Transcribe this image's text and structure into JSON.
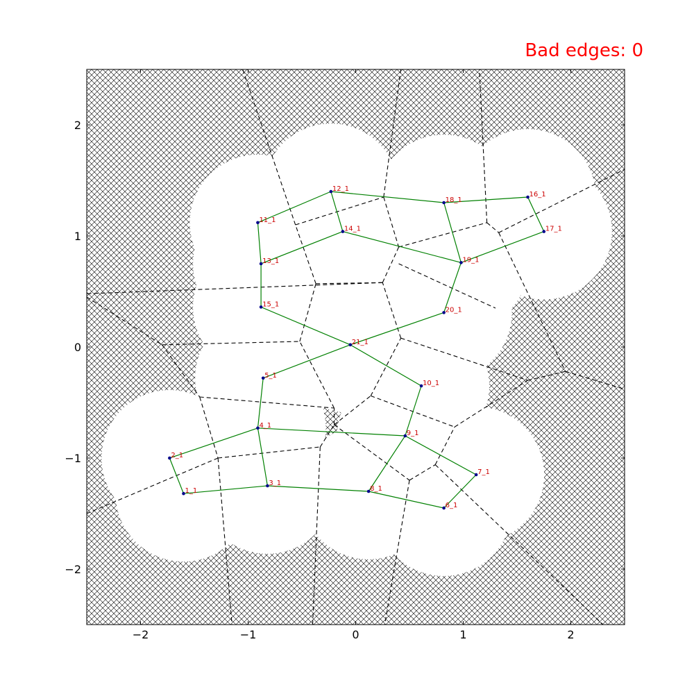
{
  "title": "Bad edges: 0",
  "chart_data": {
    "type": "scatter",
    "xlim": [
      -2.5,
      2.5
    ],
    "ylim": [
      -2.5,
      2.5
    ],
    "xticks": [
      -2,
      -1,
      0,
      1,
      2
    ],
    "yticks": [
      -2,
      -1,
      0,
      1,
      2
    ],
    "xtick_labels": [
      "−2",
      "−1",
      "0",
      "1",
      "2"
    ],
    "ytick_labels": [
      "−2",
      "−1",
      "0",
      "1",
      "2"
    ],
    "grid": false,
    "colors": {
      "edges": "#008000",
      "points": "#00008b",
      "labels": "#cc0000",
      "voronoi": "#000000",
      "hatch": "#000000"
    },
    "nodes": [
      {
        "label": "1_1",
        "x": -1.6,
        "y": -1.32
      },
      {
        "label": "2_1",
        "x": -1.73,
        "y": -1.0
      },
      {
        "label": "3_1",
        "x": -0.82,
        "y": -1.25
      },
      {
        "label": "4_1",
        "x": -0.91,
        "y": -0.73
      },
      {
        "label": "5_1",
        "x": -0.86,
        "y": -0.28
      },
      {
        "label": "6_1",
        "x": 0.82,
        "y": -1.45
      },
      {
        "label": "7_1",
        "x": 1.12,
        "y": -1.15
      },
      {
        "label": "8_1",
        "x": 0.12,
        "y": -1.3
      },
      {
        "label": "9_1",
        "x": 0.46,
        "y": -0.8
      },
      {
        "label": "10_1",
        "x": 0.61,
        "y": -0.35
      },
      {
        "label": "11_1",
        "x": -0.91,
        "y": 1.12
      },
      {
        "label": "12_1",
        "x": -0.23,
        "y": 1.4
      },
      {
        "label": "13_1",
        "x": -0.88,
        "y": 0.75
      },
      {
        "label": "14_1",
        "x": -0.12,
        "y": 1.04
      },
      {
        "label": "15_1",
        "x": -0.88,
        "y": 0.36
      },
      {
        "label": "16_1",
        "x": 1.6,
        "y": 1.35
      },
      {
        "label": "17_1",
        "x": 1.75,
        "y": 1.04
      },
      {
        "label": "18_1",
        "x": 0.82,
        "y": 1.3
      },
      {
        "label": "19_1",
        "x": 0.98,
        "y": 0.76
      },
      {
        "label": "20_1",
        "x": 0.82,
        "y": 0.31
      },
      {
        "label": "21_1",
        "x": -0.05,
        "y": 0.02
      }
    ],
    "edges": [
      [
        "1_1",
        "2_1"
      ],
      [
        "1_1",
        "3_1"
      ],
      [
        "2_1",
        "4_1"
      ],
      [
        "3_1",
        "4_1"
      ],
      [
        "3_1",
        "8_1"
      ],
      [
        "4_1",
        "5_1"
      ],
      [
        "4_1",
        "9_1"
      ],
      [
        "5_1",
        "21_1"
      ],
      [
        "6_1",
        "7_1"
      ],
      [
        "6_1",
        "8_1"
      ],
      [
        "7_1",
        "9_1"
      ],
      [
        "8_1",
        "9_1"
      ],
      [
        "9_1",
        "10_1"
      ],
      [
        "10_1",
        "21_1"
      ],
      [
        "11_1",
        "12_1"
      ],
      [
        "11_1",
        "13_1"
      ],
      [
        "12_1",
        "14_1"
      ],
      [
        "12_1",
        "18_1"
      ],
      [
        "13_1",
        "14_1"
      ],
      [
        "13_1",
        "15_1"
      ],
      [
        "14_1",
        "19_1"
      ],
      [
        "15_1",
        "21_1"
      ],
      [
        "16_1",
        "17_1"
      ],
      [
        "16_1",
        "18_1"
      ],
      [
        "17_1",
        "19_1"
      ],
      [
        "18_1",
        "19_1"
      ],
      [
        "19_1",
        "20_1"
      ],
      [
        "20_1",
        "21_1"
      ]
    ],
    "voronoi_vertices": [
      [
        -1.8,
        0.02
      ],
      [
        -0.52,
        0.05
      ],
      [
        -1.45,
        -0.45
      ],
      [
        -1.28,
        -1.0
      ],
      [
        -0.56,
        1.1
      ],
      [
        -0.37,
        0.57
      ],
      [
        0.26,
        1.35
      ],
      [
        0.4,
        0.9
      ],
      [
        0.25,
        0.58
      ],
      [
        0.42,
        0.08
      ],
      [
        0.14,
        -0.44
      ],
      [
        -0.2,
        -0.7
      ],
      [
        0.5,
        -1.2
      ],
      [
        0.74,
        -1.06
      ],
      [
        0.92,
        -0.72
      ],
      [
        1.22,
        1.12
      ],
      [
        1.33,
        1.03
      ],
      [
        1.6,
        -0.3
      ],
      [
        1.95,
        -0.22
      ],
      [
        -0.33,
        -0.9
      ]
    ],
    "voronoi_edges": [
      [
        [
          -2.5,
          0.45
        ],
        [
          -1.8,
          0.02
        ]
      ],
      [
        [
          -1.8,
          0.02
        ],
        [
          -0.52,
          0.05
        ]
      ],
      [
        [
          -1.8,
          0.02
        ],
        [
          -1.45,
          -0.45
        ]
      ],
      [
        [
          -1.45,
          -0.45
        ],
        [
          -1.28,
          -1.0
        ]
      ],
      [
        [
          -1.45,
          -0.45
        ],
        [
          -0.2,
          -0.55
        ]
      ],
      [
        [
          -1.28,
          -1.0
        ],
        [
          -2.5,
          -1.5
        ]
      ],
      [
        [
          -1.28,
          -1.0
        ],
        [
          -0.33,
          -0.9
        ]
      ],
      [
        [
          -1.28,
          -1.0
        ],
        [
          -1.15,
          -2.5
        ]
      ],
      [
        [
          -0.33,
          -0.9
        ],
        [
          -0.4,
          -2.5
        ]
      ],
      [
        [
          -0.33,
          -0.9
        ],
        [
          -0.2,
          -0.7
        ]
      ],
      [
        [
          -0.2,
          -0.7
        ],
        [
          -0.2,
          -0.55
        ]
      ],
      [
        [
          -0.2,
          -0.55
        ],
        [
          -0.52,
          0.05
        ]
      ],
      [
        [
          -0.2,
          -0.7
        ],
        [
          0.14,
          -0.44
        ]
      ],
      [
        [
          -0.2,
          -0.7
        ],
        [
          0.5,
          -1.2
        ]
      ],
      [
        [
          0.14,
          -0.44
        ],
        [
          0.42,
          0.08
        ]
      ],
      [
        [
          0.14,
          -0.44
        ],
        [
          0.92,
          -0.72
        ]
      ],
      [
        [
          0.42,
          0.08
        ],
        [
          0.25,
          0.58
        ]
      ],
      [
        [
          0.42,
          0.08
        ],
        [
          1.6,
          -0.3
        ]
      ],
      [
        [
          0.5,
          -1.2
        ],
        [
          0.74,
          -1.06
        ]
      ],
      [
        [
          0.74,
          -1.06
        ],
        [
          0.92,
          -0.72
        ]
      ],
      [
        [
          0.92,
          -0.72
        ],
        [
          1.6,
          -0.3
        ]
      ],
      [
        [
          0.5,
          -1.2
        ],
        [
          0.27,
          -2.5
        ]
      ],
      [
        [
          0.74,
          -1.06
        ],
        [
          2.3,
          -2.5
        ]
      ],
      [
        [
          -0.52,
          0.05
        ],
        [
          -0.37,
          0.57
        ]
      ],
      [
        [
          -0.37,
          0.57
        ],
        [
          0.25,
          0.58
        ]
      ],
      [
        [
          -0.37,
          0.57
        ],
        [
          -0.56,
          1.1
        ]
      ],
      [
        [
          -0.56,
          1.1
        ],
        [
          -1.05,
          2.5
        ]
      ],
      [
        [
          -0.56,
          1.1
        ],
        [
          0.26,
          1.35
        ]
      ],
      [
        [
          0.26,
          1.35
        ],
        [
          0.42,
          2.5
        ]
      ],
      [
        [
          0.26,
          1.35
        ],
        [
          0.4,
          0.9
        ]
      ],
      [
        [
          0.4,
          0.9
        ],
        [
          0.25,
          0.58
        ]
      ],
      [
        [
          0.4,
          0.9
        ],
        [
          1.22,
          1.12
        ]
      ],
      [
        [
          1.22,
          1.12
        ],
        [
          1.15,
          2.5
        ]
      ],
      [
        [
          1.22,
          1.12
        ],
        [
          1.33,
          1.03
        ]
      ],
      [
        [
          1.33,
          1.03
        ],
        [
          2.5,
          1.6
        ]
      ],
      [
        [
          1.33,
          1.03
        ],
        [
          1.95,
          -0.22
        ]
      ],
      [
        [
          1.95,
          -0.22
        ],
        [
          2.5,
          -0.38
        ]
      ],
      [
        [
          1.95,
          -0.22
        ],
        [
          1.6,
          -0.3
        ]
      ],
      [
        [
          0.25,
          0.58
        ],
        [
          -2.5,
          0.48
        ]
      ],
      [
        [
          0.4,
          0.75
        ],
        [
          1.3,
          0.35
        ]
      ]
    ]
  }
}
